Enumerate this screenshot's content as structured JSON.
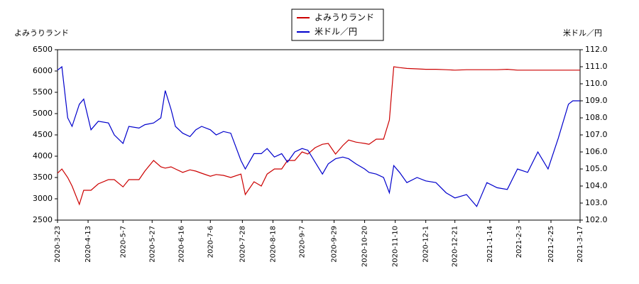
{
  "chart_data": {
    "type": "line",
    "y_label": "よみうりランド",
    "y2_label": "米ドル／円",
    "x": [
      "2020-3-23",
      "2020-3-26",
      "2020-3-30",
      "2020-4-2",
      "2020-4-7",
      "2020-4-10",
      "2020-4-15",
      "2020-4-20",
      "2020-4-27",
      "2020-5-1",
      "2020-5-7",
      "2020-5-11",
      "2020-5-18",
      "2020-5-22",
      "2020-5-28",
      "2020-6-2",
      "2020-6-5",
      "2020-6-9",
      "2020-6-12",
      "2020-6-17",
      "2020-6-22",
      "2020-6-26",
      "2020-6-30",
      "2020-7-6",
      "2020-7-10",
      "2020-7-15",
      "2020-7-20",
      "2020-7-27",
      "2020-7-30",
      "2020-8-5",
      "2020-8-10",
      "2020-8-14",
      "2020-8-19",
      "2020-8-24",
      "2020-8-28",
      "2020-9-2",
      "2020-9-7",
      "2020-9-11",
      "2020-9-16",
      "2020-9-21",
      "2020-9-25",
      "2020-9-30",
      "2020-10-5",
      "2020-10-9",
      "2020-10-14",
      "2020-10-20",
      "2020-10-23",
      "2020-10-28",
      "2020-11-2",
      "2020-11-6",
      "2020-11-9",
      "2020-11-13",
      "2020-11-18",
      "2020-11-25",
      "2020-12-1",
      "2020-12-8",
      "2020-12-15",
      "2020-12-21",
      "2020-12-29",
      "2021-1-5",
      "2021-1-12",
      "2021-1-19",
      "2021-1-26",
      "2021-2-2",
      "2021-2-9",
      "2021-2-16",
      "2021-2-23",
      "2021-3-2",
      "2021-3-9",
      "2021-3-12",
      "2021-3-17"
    ],
    "series": [
      {
        "name": "よみうりランド",
        "color": "#cc0000",
        "values": [
          3600,
          3700,
          3500,
          3300,
          2870,
          3200,
          3200,
          3350,
          3450,
          3450,
          3280,
          3450,
          3450,
          3650,
          3900,
          3750,
          3720,
          3750,
          3700,
          3620,
          3680,
          3650,
          3600,
          3530,
          3570,
          3550,
          3500,
          3580,
          3100,
          3400,
          3300,
          3580,
          3700,
          3700,
          3900,
          3900,
          4100,
          4050,
          4200,
          4280,
          4300,
          4050,
          4250,
          4380,
          4330,
          4300,
          4280,
          4400,
          4400,
          4850,
          6100,
          6080,
          6060,
          6050,
          6040,
          6040,
          6030,
          6020,
          6030,
          6030,
          6030,
          6030,
          6040,
          6020,
          6020,
          6020,
          6020,
          6020,
          6020,
          6020,
          6020
        ]
      },
      {
        "name": "米ドル／円",
        "color": "#0000cc",
        "axis": "y2",
        "values": [
          110.8,
          111.0,
          108.0,
          107.5,
          108.8,
          109.1,
          107.3,
          107.8,
          107.7,
          107.0,
          106.5,
          107.5,
          107.4,
          107.6,
          107.7,
          108.0,
          109.6,
          108.5,
          107.5,
          107.1,
          106.9,
          107.3,
          107.5,
          107.3,
          107.0,
          107.2,
          107.1,
          105.5,
          105.0,
          105.9,
          105.9,
          106.2,
          105.7,
          105.9,
          105.4,
          106.0,
          106.2,
          106.1,
          105.4,
          104.7,
          105.3,
          105.6,
          105.7,
          105.6,
          105.3,
          105.0,
          104.8,
          104.7,
          104.5,
          103.6,
          105.2,
          104.8,
          104.2,
          104.5,
          104.3,
          104.2,
          103.6,
          103.3,
          103.5,
          102.8,
          104.2,
          103.9,
          103.8,
          105.0,
          104.8,
          106.0,
          105.0,
          106.8,
          108.8,
          109.0,
          109.0
        ]
      }
    ],
    "xlim": [
      "2020-3-23",
      "2021-3-17"
    ],
    "xticks": [
      "2020-3-23",
      "2020-4-13",
      "2020-5-7",
      "2020-5-27",
      "2020-6-16",
      "2020-7-6",
      "2020-7-28",
      "2020-8-18",
      "2020-9-7",
      "2020-9-29",
      "2020-10-20",
      "2020-11-10",
      "2020-12-1",
      "2020-12-21",
      "2021-1-14",
      "2021-2-3",
      "2021-2-25",
      "2021-3-17"
    ],
    "ylim": [
      2500,
      6500
    ],
    "yticks": [
      2500,
      3000,
      3500,
      4000,
      4500,
      5000,
      5500,
      6000,
      6500
    ],
    "y2lim": [
      102,
      112
    ],
    "y2ticks": [
      {
        "value": 102,
        "label": "102.0"
      },
      {
        "value": 103,
        "label": "103.0"
      },
      {
        "value": 104,
        "label": "104.0"
      },
      {
        "value": 105,
        "label": "105.0"
      },
      {
        "value": 106,
        "label": "106.0"
      },
      {
        "value": 107,
        "label": "107.0"
      },
      {
        "value": 108,
        "label": "108.0"
      },
      {
        "value": 109,
        "label": "109.0"
      },
      {
        "value": 110,
        "label": "110.0"
      },
      {
        "value": 111,
        "label": "111.0"
      },
      {
        "value": 112,
        "label": "112.0"
      }
    ]
  }
}
